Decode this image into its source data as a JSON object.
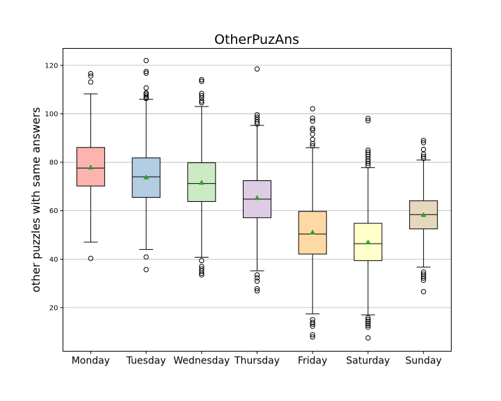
{
  "chart_data": {
    "type": "box",
    "title": "OtherPuzAns",
    "xlabel": "",
    "ylabel": "other puzzles with same answers",
    "ylim": [
      2,
      127
    ],
    "yticks": [
      20,
      40,
      60,
      80,
      100,
      120
    ],
    "grid": "horizontal",
    "categories": [
      "Monday",
      "Tuesday",
      "Wednesday",
      "Thursday",
      "Friday",
      "Saturday",
      "Sunday"
    ],
    "boxes": [
      {
        "name": "Monday",
        "color": "#fbb4ae",
        "whislo": 47,
        "q1": 70.2,
        "med": 77.6,
        "q3": 86.1,
        "whishi": 108.2,
        "mean": 77.9,
        "fliers": [
          40.3,
          113.1,
          115.6,
          116.6
        ]
      },
      {
        "name": "Tuesday",
        "color": "#b3cde3",
        "whislo": 44,
        "q1": 65.5,
        "med": 74.0,
        "q3": 81.8,
        "whishi": 106.0,
        "mean": 73.8,
        "fliers": [
          35.7,
          40.9,
          106.3,
          106.7,
          107.4,
          108.1,
          108.6,
          110.7,
          116.8,
          117.5,
          122.0
        ]
      },
      {
        "name": "Wednesday",
        "color": "#ccebc5",
        "whislo": 40.8,
        "q1": 63.8,
        "med": 71.2,
        "q3": 79.8,
        "whishi": 103.0,
        "mean": 71.6,
        "fliers": [
          33.5,
          34.2,
          35.1,
          36.0,
          37.0,
          39.4,
          104.6,
          105.3,
          106.5,
          107.5,
          108.4,
          113.4,
          114.1
        ]
      },
      {
        "name": "Thursday",
        "color": "#decbe4",
        "whislo": 35.2,
        "q1": 57.1,
        "med": 64.8,
        "q3": 72.4,
        "whishi": 95.2,
        "mean": 65.3,
        "fliers": [
          26.9,
          27.8,
          30.9,
          32.3,
          33.5,
          95.8,
          96.6,
          97.6,
          98.6,
          99.6,
          118.5
        ]
      },
      {
        "name": "Friday",
        "color": "#fed9a6",
        "whislo": 17.4,
        "q1": 42.1,
        "med": 50.4,
        "q3": 59.7,
        "whishi": 86.0,
        "mean": 51.1,
        "fliers": [
          7.9,
          8.8,
          12.3,
          13.2,
          13.9,
          15.0,
          86.8,
          87.7,
          89.4,
          91.6,
          93.3,
          94.0,
          97.0,
          98.2,
          102.1
        ]
      },
      {
        "name": "Saturday",
        "color": "#ffffcc",
        "whislo": 17.0,
        "q1": 39.4,
        "med": 46.4,
        "q3": 54.8,
        "whishi": 77.8,
        "mean": 47.0,
        "fliers": [
          7.5,
          11.9,
          12.7,
          13.4,
          14.2,
          15.0,
          15.8,
          78.6,
          79.5,
          80.4,
          81.3,
          82.3,
          83.2,
          84.1,
          85.0,
          97.2,
          98.1
        ]
      },
      {
        "name": "Sunday",
        "color": "#e5d8bd",
        "whislo": 36.7,
        "q1": 52.5,
        "med": 58.4,
        "q3": 64.1,
        "whishi": 80.9,
        "mean": 58.3,
        "fliers": [
          26.6,
          31.3,
          32.2,
          33.0,
          33.8,
          34.7,
          81.6,
          82.4,
          83.3,
          85.3,
          88.1,
          89.0
        ]
      }
    ]
  }
}
